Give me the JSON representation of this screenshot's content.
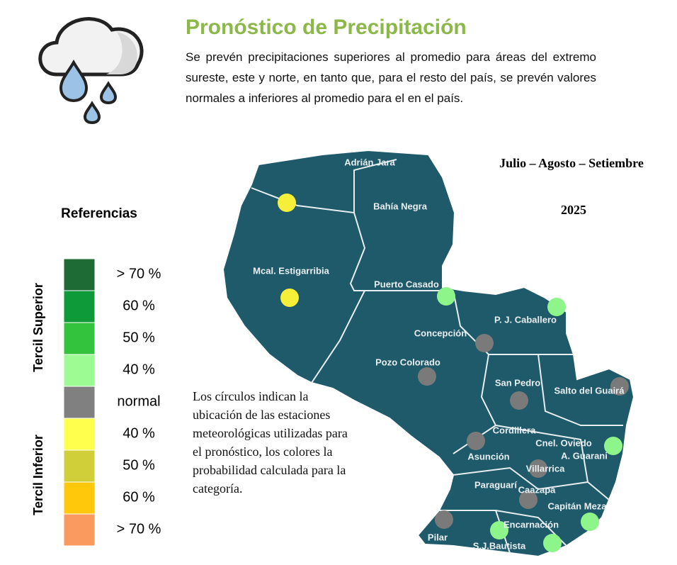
{
  "header": {
    "title": "Pronóstico de Precipitación",
    "description": "Se prevén precipitaciones superiores al promedio para áreas del extremo sureste, este y norte, en tanto que, para el resto del país, se prevén valores normales a inferiores al promedio para el  en el país."
  },
  "period": "Julio – Agosto – Setiembre",
  "year": "2025",
  "legend": {
    "title": "Referencias",
    "upper_group": "Tercil Superior",
    "lower_group": "Tercil Inferior",
    "items": [
      {
        "label": "> 70 %",
        "color": "#1e6b35"
      },
      {
        "label": "60 %",
        "color": "#0f9a3a"
      },
      {
        "label": "50 %",
        "color": "#34c33d"
      },
      {
        "label": "40 %",
        "color": "#9dfb94"
      },
      {
        "label": "normal",
        "color": "#808080"
      },
      {
        "label": "40  %",
        "color": "#ffff4d"
      },
      {
        "label": "50  %",
        "color": "#d0cf3a"
      },
      {
        "label": "60 %",
        "color": "#ffc80a"
      },
      {
        "label": "> 70 %",
        "color": "#fb9a5e"
      }
    ]
  },
  "note": "Los círculos indican la ubicación de las estaciones meteorológicas utilizadas para el pronóstico, los colores la probabilidad calculada para la categoría.",
  "places": [
    "Adrián Jara",
    "Bahía Negra",
    "Mcal. Estigarribia",
    "Puerto Casado",
    "P. J. Caballero",
    "Concepción",
    "Pozo Colorado",
    "San Pedro",
    "Salto del Guairá",
    "Cordillera",
    "Cnel. Oviedo",
    "Asunción",
    "A. Guarani",
    "Villarrica",
    "Paraguarí",
    "Caazapá",
    "Capitán Meza",
    "Encarnación",
    "Pilar",
    "S.J.Bautista"
  ],
  "stations": [
    {
      "color": "#f5ef3a"
    },
    {
      "color": "#f5ef3a"
    },
    {
      "color": "#8ef58a"
    },
    {
      "color": "#8ef58a"
    },
    {
      "color": "#7a7a7a"
    },
    {
      "color": "#7a7a7a"
    },
    {
      "color": "#7a7a7a"
    },
    {
      "color": "#7a7a7a"
    },
    {
      "color": "#7a7a7a"
    },
    {
      "color": "#8ef58a"
    },
    {
      "color": "#7a7a7a"
    },
    {
      "color": "#7a7a7a"
    },
    {
      "color": "#7a7a7a"
    },
    {
      "color": "#8ef58a"
    },
    {
      "color": "#8ef58a"
    },
    {
      "color": "#8ef58a"
    }
  ]
}
